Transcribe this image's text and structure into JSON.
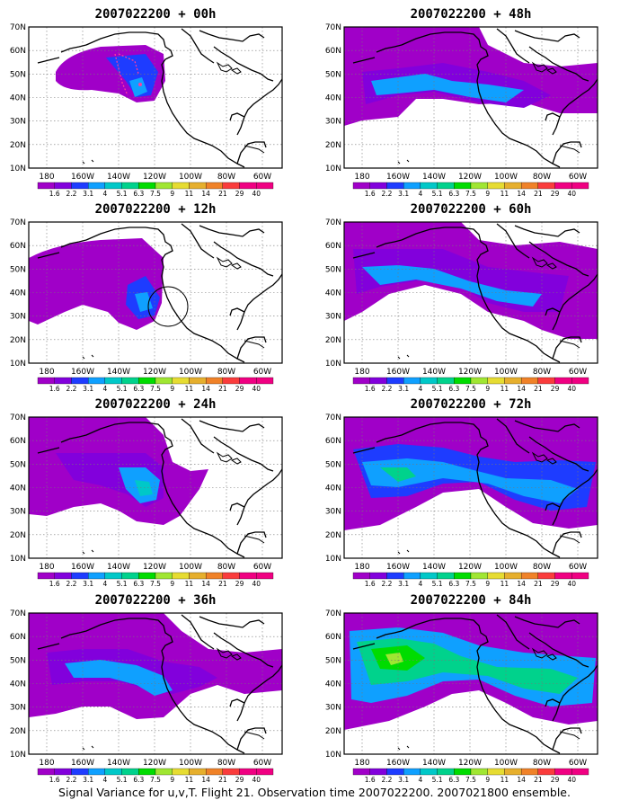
{
  "panels": [
    {
      "id": "p00",
      "title": "2007022200 + 00h",
      "lead": "00h"
    },
    {
      "id": "p48",
      "title": "2007022200 + 48h",
      "lead": "48h"
    },
    {
      "id": "p12",
      "title": "2007022200 + 12h",
      "lead": "12h"
    },
    {
      "id": "p60",
      "title": "2007022200 + 60h",
      "lead": "60h"
    },
    {
      "id": "p24",
      "title": "2007022200 + 24h",
      "lead": "24h"
    },
    {
      "id": "p72",
      "title": "2007022200 + 72h",
      "lead": "72h"
    },
    {
      "id": "p36",
      "title": "2007022200 + 36h",
      "lead": "36h"
    },
    {
      "id": "p84",
      "title": "2007022200 + 84h",
      "lead": "84h"
    }
  ],
  "axes": {
    "lat_ticks": [
      "70N",
      "60N",
      "50N",
      "40N",
      "30N",
      "20N",
      "10N"
    ],
    "lon_ticks": [
      "180",
      "160W",
      "140W",
      "120W",
      "100W",
      "80W",
      "60W"
    ]
  },
  "colorbar": {
    "labels": [
      "1.6",
      "2.2",
      "3.1",
      "4",
      "5.1",
      "6.3",
      "7.5",
      "9",
      "11",
      "14",
      "21",
      "29",
      "40"
    ],
    "colors": [
      "#a000c8",
      "#8200dc",
      "#1e3cff",
      "#0fa0ff",
      "#00c8c8",
      "#00d28c",
      "#00dc00",
      "#a0e632",
      "#e6dc32",
      "#e6af2d",
      "#f08228",
      "#fa3c3c",
      "#f00082"
    ]
  },
  "caption": "Signal Variance for u,v,T. Flight 21. Observation time 2007022200. 2007021800 ensemble."
}
